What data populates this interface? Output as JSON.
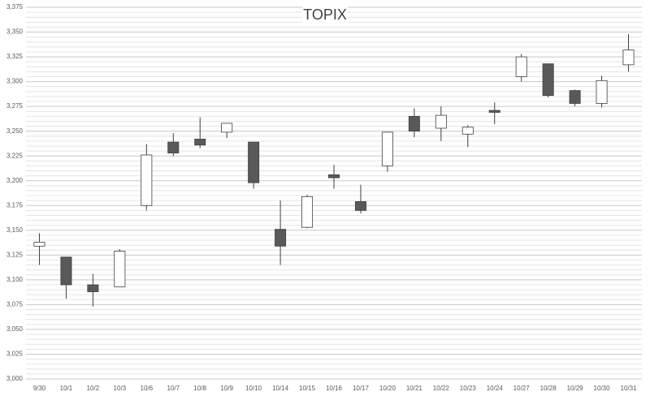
{
  "chart_data": {
    "type": "candlestick",
    "title": "TOPIX",
    "categories": [
      "9/30",
      "10/1",
      "10/2",
      "10/3",
      "10/6",
      "10/7",
      "10/8",
      "10/9",
      "10/10",
      "10/14",
      "10/15",
      "10/16",
      "10/17",
      "10/20",
      "10/21",
      "10/22",
      "10/23",
      "10/24",
      "10/27",
      "10/28",
      "10/29",
      "10/30",
      "10/31"
    ],
    "open": [
      3134,
      3123,
      3095,
      3093,
      3175,
      3239,
      3242,
      3249,
      3239,
      3151,
      3153,
      3206,
      3179,
      3215,
      3265,
      3253,
      3247,
      3271,
      3305,
      3318,
      3291,
      3278,
      3317
    ],
    "high": [
      3147,
      3123,
      3106,
      3131,
      3237,
      3248,
      3264,
      3258,
      3239,
      3180,
      3186,
      3216,
      3196,
      3249,
      3273,
      3275,
      3256,
      3279,
      3328,
      3318,
      3292,
      3306,
      3348
    ],
    "low": [
      3115,
      3081,
      3073,
      3093,
      3170,
      3225,
      3233,
      3243,
      3192,
      3115,
      3152,
      3192,
      3167,
      3209,
      3244,
      3240,
      3234,
      3257,
      3300,
      3284,
      3275,
      3274,
      3310
    ],
    "close": [
      3138,
      3095,
      3088,
      3129,
      3226,
      3228,
      3236,
      3258,
      3198,
      3134,
      3184,
      3203,
      3170,
      3249,
      3250,
      3266,
      3254,
      3269,
      3325,
      3286,
      3278,
      3301,
      3332
    ],
    "up_color": "#ffffff",
    "down_color": "#595959",
    "ylim": [
      3000,
      3375
    ],
    "yticks": [
      {
        "value": 3000,
        "label": "3,000"
      },
      {
        "value": 3025,
        "label": "3,025"
      },
      {
        "value": 3050,
        "label": "3,050"
      },
      {
        "value": 3075,
        "label": "3,075"
      },
      {
        "value": 3100,
        "label": "3,100"
      },
      {
        "value": 3125,
        "label": "3,125"
      },
      {
        "value": 3150,
        "label": "3,150"
      },
      {
        "value": 3175,
        "label": "3,175"
      },
      {
        "value": 3200,
        "label": "3,200"
      },
      {
        "value": 3225,
        "label": "3,225"
      },
      {
        "value": 3250,
        "label": "3,250"
      },
      {
        "value": 3275,
        "label": "3,275"
      },
      {
        "value": 3300,
        "label": "3,300"
      },
      {
        "value": 3325,
        "label": "3,325"
      },
      {
        "value": 3350,
        "label": "3,350"
      },
      {
        "value": 3375,
        "label": "3,375"
      }
    ],
    "grid": true
  }
}
